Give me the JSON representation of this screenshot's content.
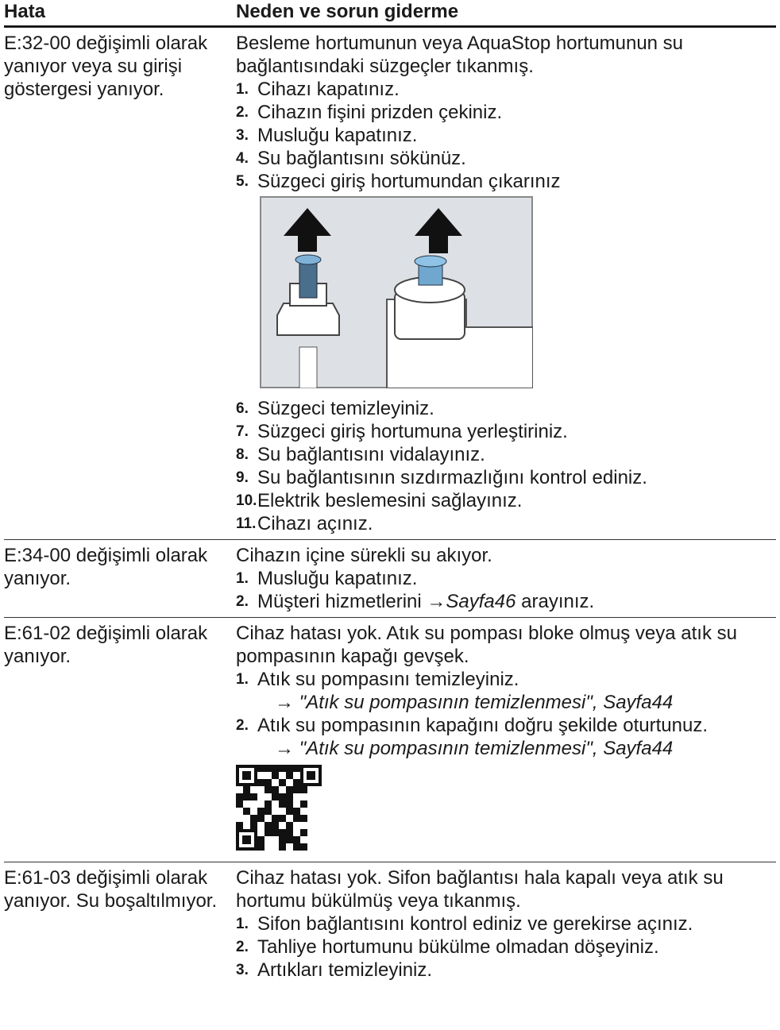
{
  "table": {
    "header": [
      "Hata",
      "Neden ve sorun giderme"
    ],
    "rows": [
      {
        "error": "E:32-00 değişimli olarak yanıyor veya su girişi göstergesi yanıyor.",
        "cause": "Besleme hortumunun veya AquaStop hortumunun su bağlantısındaki süzgeçler tıkanmış.",
        "steps": [
          {
            "num": "1.",
            "text": "Cihazı kapatınız."
          },
          {
            "num": "2.",
            "text": "Cihazın fişini prizden çekiniz."
          },
          {
            "num": "3.",
            "text": "Musluğu kapatınız."
          },
          {
            "num": "4.",
            "text": "Su bağlantısını sökünüz."
          },
          {
            "num": "5.",
            "text": "Süzgeci giriş hortumundan çıkarınız"
          }
        ],
        "more_steps": [
          {
            "num": "6.",
            "text": "Süzgeci temizleyiniz."
          },
          {
            "num": "7.",
            "text": "Süzgeci giriş hortumuna yerleştiriniz."
          },
          {
            "num": "8.",
            "text": "Su bağlantısını vidalayınız."
          },
          {
            "num": "9.",
            "text": "Su bağlantısının sızdırmazlığını kontrol ediniz."
          },
          {
            "num": "10.",
            "text": "Elektrik beslemesini sağlayınız."
          },
          {
            "num": "11.",
            "text": "Cihazı açınız."
          }
        ]
      },
      {
        "error": "E:34-00 değişimli olarak yanıyor.",
        "cause": "Cihazın içine sürekli su akıyor.",
        "steps": [
          {
            "num": "1.",
            "text": "Musluğu kapatınız."
          },
          {
            "num": "2.",
            "text": "Müşteri hizmetlerini",
            "link": "→Sayfa46",
            "after": "arayınız."
          }
        ]
      },
      {
        "error": "E:61-02 değişimli olarak yanıyor.",
        "cause": "Cihaz hatası yok. Atık su pompası bloke olmuş veya atık su pompasının kapağı gevşek.",
        "steps": [
          {
            "num": "1.",
            "text": "Atık su pompasını temizleyiniz.",
            "ref": "→ \"Atık su pompasının temizlenmesi\", Sayfa44"
          },
          {
            "num": "2.",
            "text": "Atık su pompasının kapağını doğru şekilde oturtunuz.",
            "ref": "→ \"Atık su pompasının temizlenmesi\", Sayfa44"
          }
        ]
      },
      {
        "error": "E:61-03 değişimli olarak yanıyor. Su boşaltılmıyor.",
        "cause": "Cihaz hatası yok. Sifon bağlantısı hala kapalı veya atık su hortumu bükülmüş veya tıkanmış.",
        "steps": [
          {
            "num": "1.",
            "text": "Sifon bağlantısını kontrol ediniz ve gerekirse açınız."
          },
          {
            "num": "2.",
            "text": "Tahliye hortumunu bükülme olmadan döşeyiniz."
          },
          {
            "num": "3.",
            "text": "Artıkları temizleyiniz."
          }
        ]
      }
    ]
  }
}
